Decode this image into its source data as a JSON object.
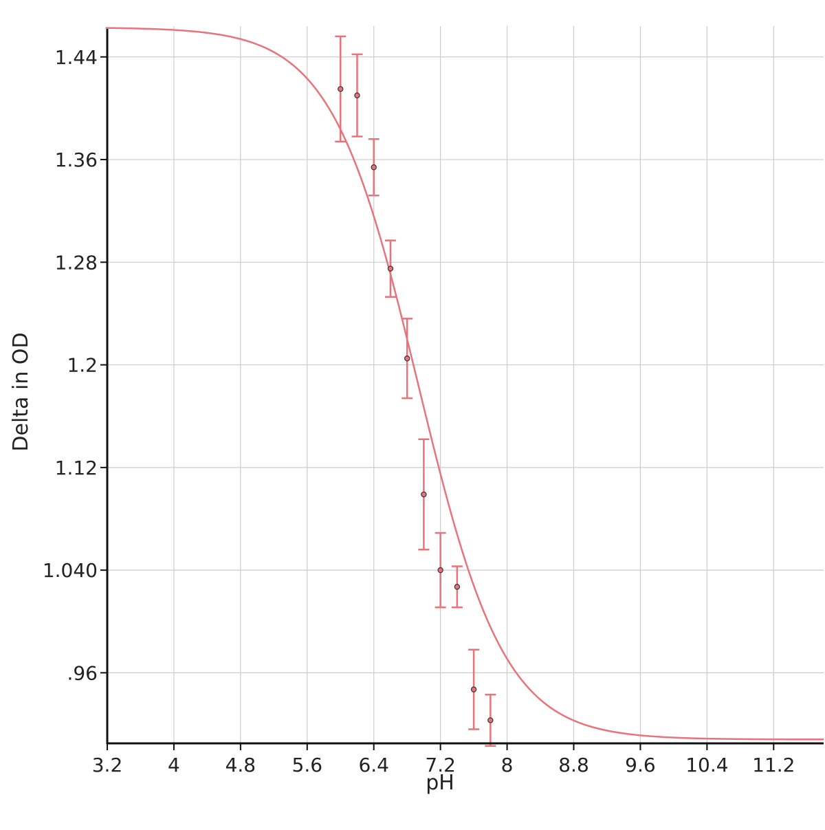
{
  "chart_data": {
    "type": "scatter",
    "xlabel": "pH",
    "ylabel": "Delta in OD",
    "xlim": [
      3.2,
      11.8
    ],
    "ylim": [
      0.905,
      1.464
    ],
    "x_ticks": [
      {
        "value": 3.2,
        "label": "3.2"
      },
      {
        "value": 4.0,
        "label": "4"
      },
      {
        "value": 4.8,
        "label": "4.8"
      },
      {
        "value": 5.6,
        "label": "5.6"
      },
      {
        "value": 6.4,
        "label": "6.4"
      },
      {
        "value": 7.2,
        "label": "7.2"
      },
      {
        "value": 8.0,
        "label": "8"
      },
      {
        "value": 8.8,
        "label": "8.8"
      },
      {
        "value": 9.6,
        "label": "9.6"
      },
      {
        "value": 10.4,
        "label": "10.4"
      },
      {
        "value": 11.2,
        "label": "11.2"
      }
    ],
    "y_ticks": [
      {
        "value": 0.96,
        "label": ".96"
      },
      {
        "value": 1.04,
        "label": "1.040"
      },
      {
        "value": 1.12,
        "label": "1.12"
      },
      {
        "value": 1.2,
        "label": "1.2"
      },
      {
        "value": 1.28,
        "label": "1.28"
      },
      {
        "value": 1.36,
        "label": "1.36"
      },
      {
        "value": 1.44,
        "label": "1.44"
      }
    ],
    "grid": true,
    "colors": {
      "series": "#e8737a",
      "marker_edge": "#333333",
      "grid": "#cccccc",
      "axis": "#111111"
    },
    "points": [
      {
        "x": 6.0,
        "y": 1.415,
        "err": 0.041
      },
      {
        "x": 6.2,
        "y": 1.41,
        "err": 0.032
      },
      {
        "x": 6.4,
        "y": 1.354,
        "err": 0.022
      },
      {
        "x": 6.6,
        "y": 1.275,
        "err": 0.022
      },
      {
        "x": 6.8,
        "y": 1.205,
        "err": 0.031
      },
      {
        "x": 7.0,
        "y": 1.099,
        "err": 0.043
      },
      {
        "x": 7.2,
        "y": 1.04,
        "err": 0.029
      },
      {
        "x": 7.4,
        "y": 1.027,
        "err": 0.016
      },
      {
        "x": 7.6,
        "y": 0.947,
        "err": 0.031
      },
      {
        "x": 7.8,
        "y": 0.923,
        "err": 0.02
      }
    ],
    "fit": {
      "model": "sigmoid",
      "top": 1.463,
      "bottom": 0.908,
      "x50": 6.93,
      "slope": 0.52
    }
  }
}
